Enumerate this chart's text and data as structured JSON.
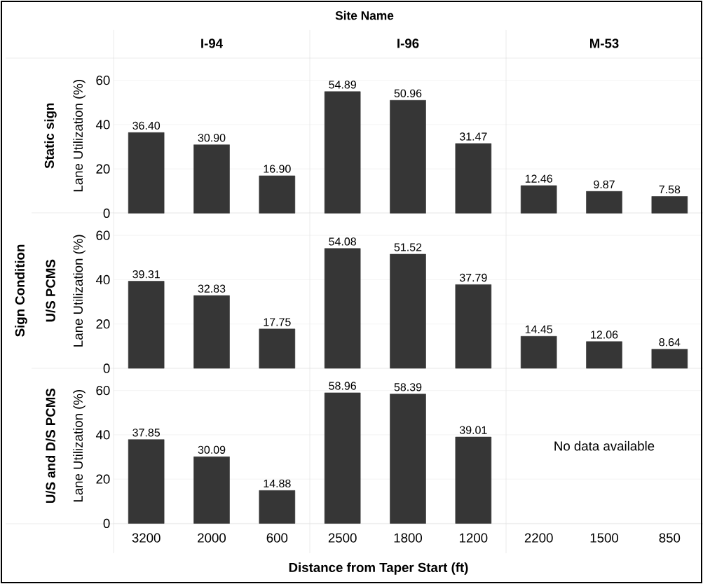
{
  "chart_data": [
    {
      "type": "bar",
      "subtitle": "I-94",
      "ylabel": "Lane Utilization (%)",
      "annotations": [
        "Static sign"
      ],
      "categories": [
        "3200",
        "2000",
        "600"
      ],
      "values": [
        36.4,
        30.9,
        16.9
      ],
      "value_labels": [
        "36.40",
        "30.90",
        "16.90"
      ],
      "color": "#363636",
      "ylim": [
        0,
        70
      ],
      "yticks": [
        0,
        20,
        40,
        60
      ],
      "grid": "y",
      "tick_labels": "y"
    },
    {
      "type": "bar",
      "title": "Site Name",
      "subtitle": "I-96",
      "categories": [
        "2500",
        "1800",
        "1200"
      ],
      "values": [
        54.89,
        50.96,
        31.47
      ],
      "value_labels": [
        "54.89",
        "50.96",
        "31.47"
      ],
      "color": "#363636",
      "ylim": [
        0,
        70
      ],
      "yticks": [
        0,
        20,
        40,
        60
      ],
      "grid": "y",
      "tick_labels": false
    },
    {
      "type": "bar",
      "subtitle": "M-53",
      "categories": [
        "2200",
        "1500",
        "850"
      ],
      "values": [
        12.46,
        9.87,
        7.58
      ],
      "value_labels": [
        "12.46",
        "9.87",
        "7.58"
      ],
      "color": "#363636",
      "ylim": [
        0,
        70
      ],
      "yticks": [
        0,
        20,
        40,
        60
      ],
      "grid": "y",
      "tick_labels": false
    },
    {
      "type": "bar",
      "ylabel": "Lane Utilization (%)",
      "annotations": [
        "U/S PCMS",
        "Sign Condition"
      ],
      "categories": [
        "3200",
        "2000",
        "600"
      ],
      "values": [
        39.31,
        32.83,
        17.75
      ],
      "value_labels": [
        "39.31",
        "32.83",
        "17.75"
      ],
      "color": "#363636",
      "ylim": [
        0,
        70
      ],
      "yticks": [
        0,
        20,
        40,
        60
      ],
      "grid": "y",
      "tick_labels": "y"
    },
    {
      "type": "bar",
      "categories": [
        "2500",
        "1800",
        "1200"
      ],
      "values": [
        54.08,
        51.52,
        37.79
      ],
      "value_labels": [
        "54.08",
        "51.52",
        "37.79"
      ],
      "color": "#363636",
      "ylim": [
        0,
        70
      ],
      "yticks": [
        0,
        20,
        40,
        60
      ],
      "grid": "y",
      "tick_labels": false
    },
    {
      "type": "bar",
      "categories": [
        "2200",
        "1500",
        "850"
      ],
      "values": [
        14.45,
        12.06,
        8.64
      ],
      "value_labels": [
        "14.45",
        "12.06",
        "8.64"
      ],
      "color": "#363636",
      "ylim": [
        0,
        70
      ],
      "yticks": [
        0,
        20,
        40,
        60
      ],
      "grid": "y",
      "tick_labels": false
    },
    {
      "type": "bar",
      "ylabel": "Lane Utilization (%)",
      "annotations": [
        "U/S and D/S PCMS"
      ],
      "categories": [
        "3200",
        "2000",
        "600"
      ],
      "values": [
        37.85,
        30.09,
        14.88
      ],
      "value_labels": [
        "37.85",
        "30.09",
        "14.88"
      ],
      "color": "#363636",
      "ylim": [
        0,
        70
      ],
      "yticks": [
        0,
        20,
        40,
        60
      ],
      "grid": "y"
    },
    {
      "type": "bar",
      "xlabel": "Distance from Taper Start (ft)",
      "categories": [
        "2500",
        "1800",
        "1200"
      ],
      "values": [
        58.96,
        58.39,
        39.01
      ],
      "value_labels": [
        "58.96",
        "58.39",
        "39.01"
      ],
      "color": "#363636",
      "ylim": [
        0,
        70
      ],
      "yticks": [
        0,
        20,
        40,
        60
      ],
      "grid": "y",
      "tick_labels": "x"
    },
    {
      "type": "bar",
      "annotations": [
        "No data available"
      ],
      "categories": [
        "2200",
        "1500",
        "850"
      ],
      "values": [
        null,
        null,
        null
      ],
      "color": "#363636",
      "ylim": [
        0,
        70
      ],
      "yticks": [
        0,
        20,
        40,
        60
      ],
      "grid": "y",
      "tick_labels": "x"
    }
  ]
}
